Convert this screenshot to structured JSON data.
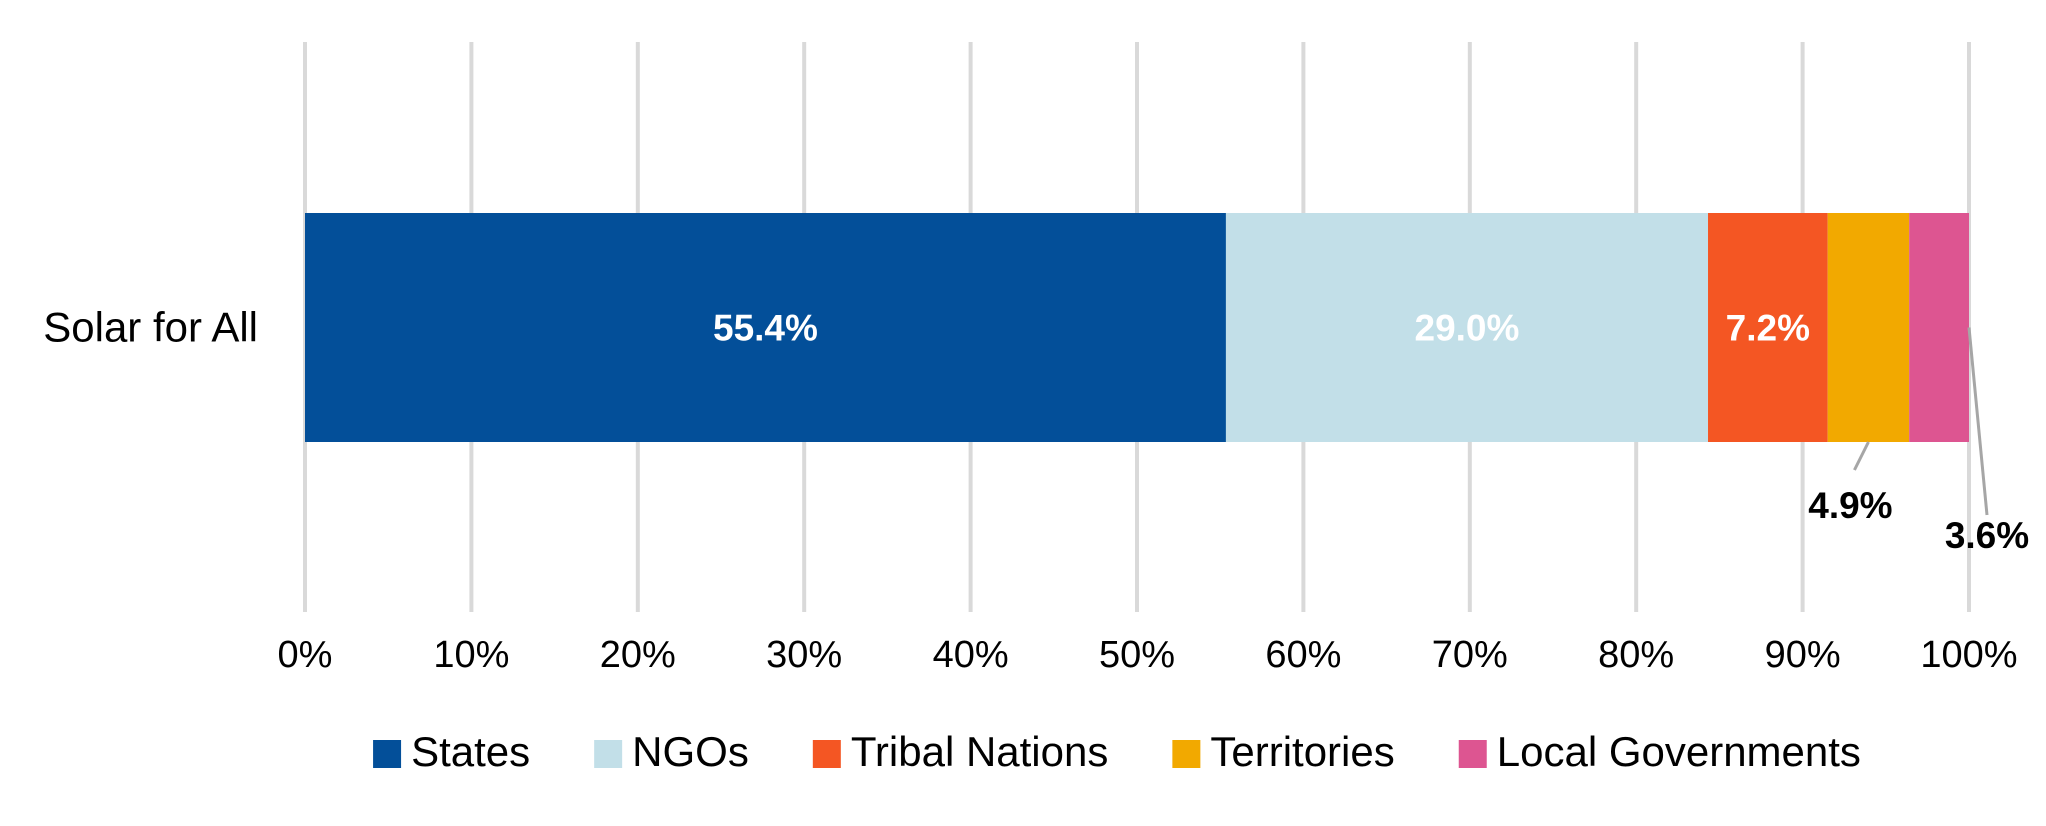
{
  "chart_data": {
    "type": "bar",
    "orientation": "horizontal",
    "stacked": true,
    "percent_stacked": true,
    "categories": [
      "Solar for All"
    ],
    "series": [
      {
        "name": "States",
        "values": [
          55.4
        ],
        "color": "#034f99",
        "label": "55.4%",
        "label_color": "#ffffff"
      },
      {
        "name": "NGOs",
        "values": [
          29.0
        ],
        "color": "#c2dfe8",
        "label": "29.0%",
        "label_color": "#ffffff"
      },
      {
        "name": "Tribal Nations",
        "values": [
          7.2
        ],
        "color": "#f45623",
        "label": "7.2%",
        "label_color": "#ffffff"
      },
      {
        "name": "Territories",
        "values": [
          4.9
        ],
        "color": "#f2a900",
        "label": "4.9%",
        "label_color": "#000000"
      },
      {
        "name": "Local Governments",
        "values": [
          3.6
        ],
        "color": "#dd5591",
        "label": "3.6%",
        "label_color": "#000000"
      }
    ],
    "xlim": [
      0,
      100
    ],
    "x_ticks": [
      "0%",
      "10%",
      "20%",
      "30%",
      "40%",
      "50%",
      "60%",
      "70%",
      "80%",
      "90%",
      "100%"
    ],
    "grid": true,
    "legend_position": "bottom",
    "title": "",
    "xlabel": "",
    "ylabel": ""
  }
}
